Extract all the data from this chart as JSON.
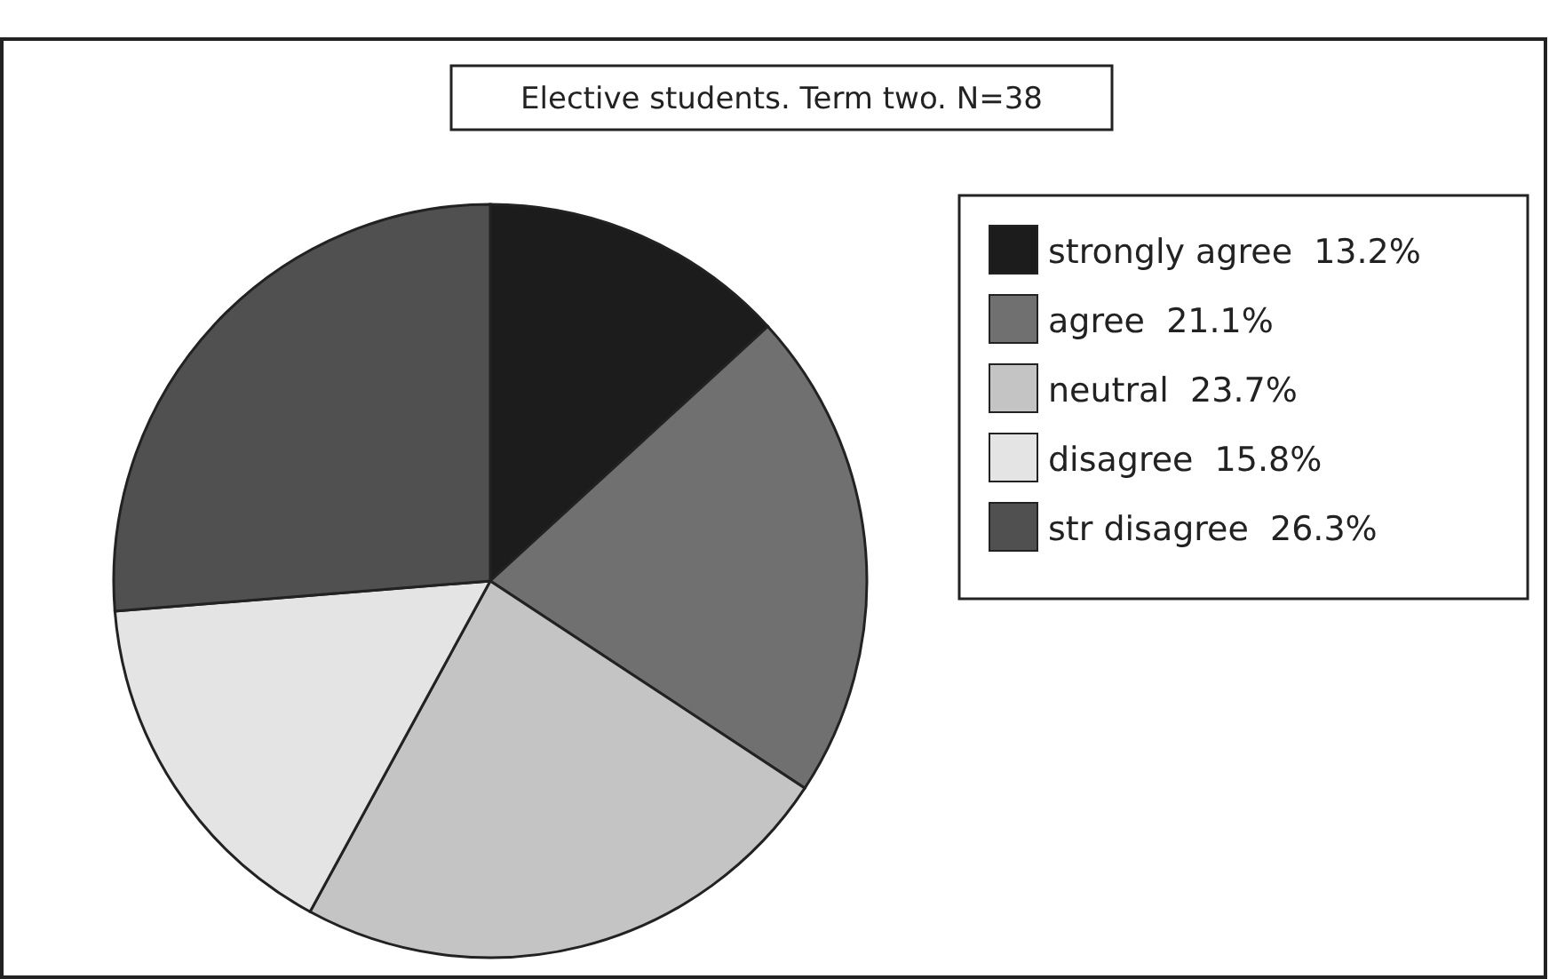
{
  "chart_data": {
    "type": "pie",
    "title": "Elective students. Term two. N=38",
    "categories": [
      "strongly agree",
      "agree",
      "neutral",
      "disagree",
      "str disagree"
    ],
    "values": [
      13.2,
      21.1,
      23.7,
      15.8,
      26.3
    ],
    "value_labels": [
      "13.2%",
      "21.1%",
      "23.7%",
      "15.8%",
      "26.3%"
    ],
    "colors": [
      "#1c1c1c",
      "#707070",
      "#c4c4c4",
      "#e4e4e4",
      "#505050"
    ],
    "legend": "right"
  }
}
